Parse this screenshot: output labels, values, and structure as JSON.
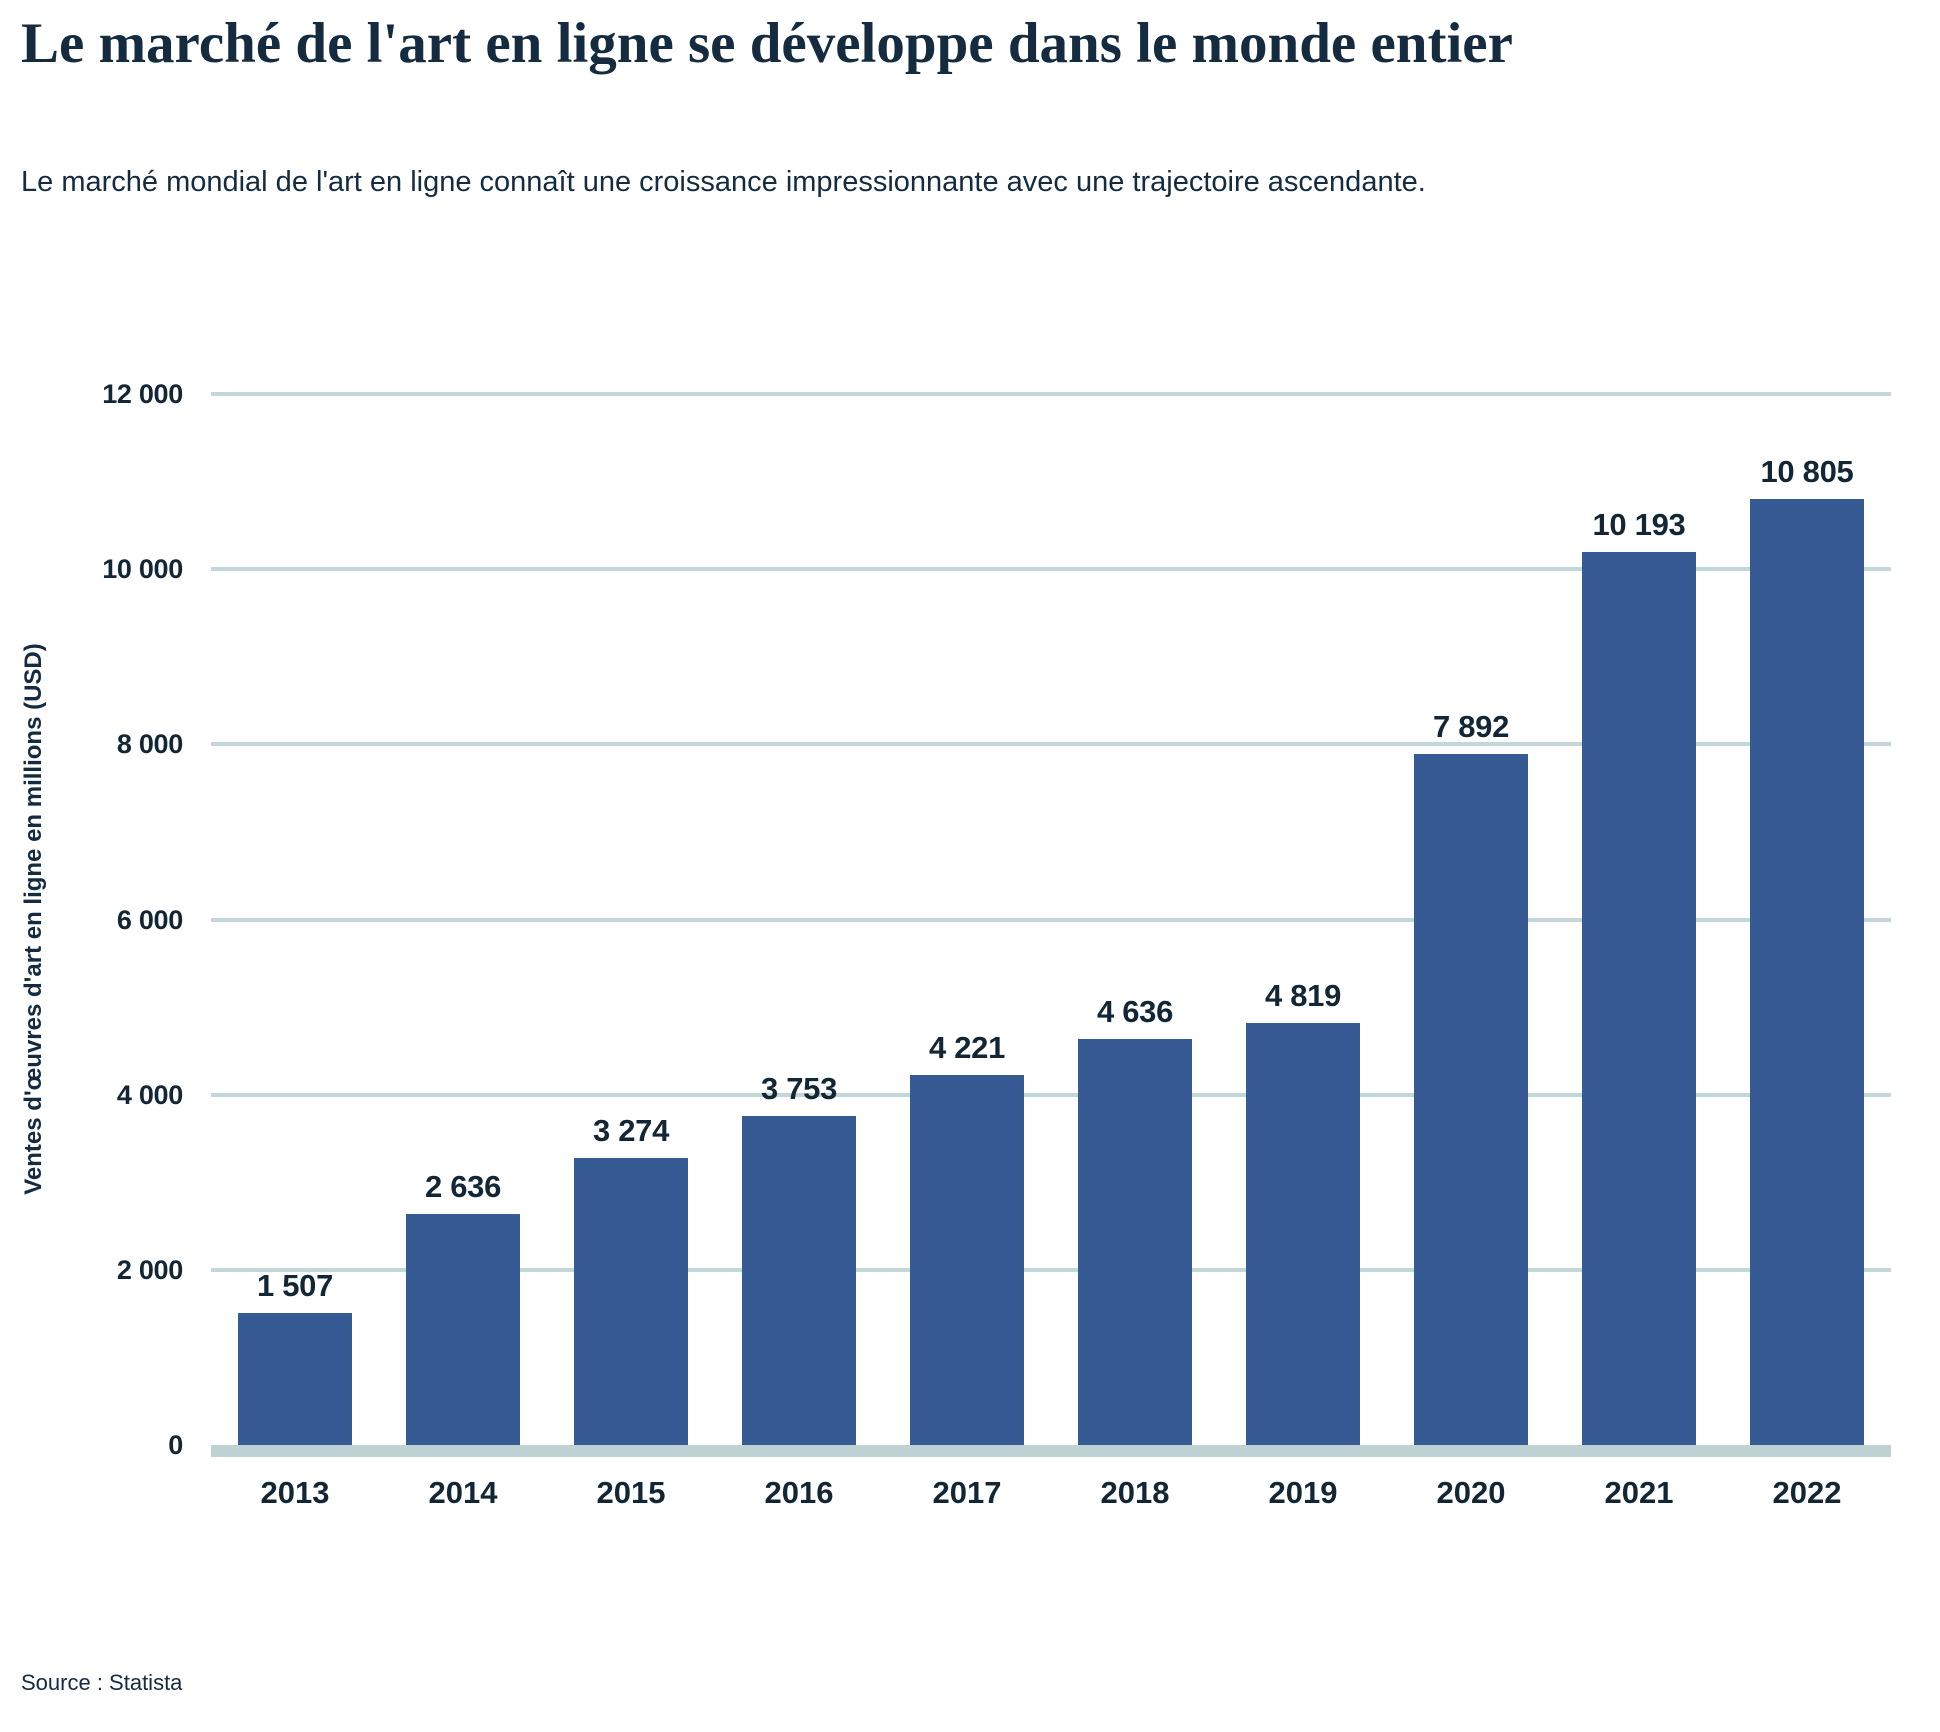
{
  "header": {
    "title": "Le marché de l'art en ligne se développe dans le monde entier",
    "subtitle": "Le marché mondial de l'art en ligne connaît une croissance impressionnante avec une trajectoire ascendante."
  },
  "source": {
    "label": "Source : Statista"
  },
  "chart_data": {
    "type": "bar",
    "title": "Le marché de l'art en ligne se développe dans le monde entier",
    "subtitle": "Le marché mondial de l'art en ligne connaît une croissance impressionnante avec une trajectoire ascendante.",
    "categories": [
      "2013",
      "2014",
      "2015",
      "2016",
      "2017",
      "2018",
      "2019",
      "2020",
      "2021",
      "2022"
    ],
    "values": [
      1507,
      2636,
      3274,
      3753,
      4221,
      4636,
      4819,
      7892,
      10193,
      10805
    ],
    "value_labels": [
      "1 507",
      "2 636",
      "3 274",
      "3 753",
      "4 221",
      "4 636",
      "4 819",
      "7 892",
      "10 193",
      "10 805"
    ],
    "xlabel": "",
    "ylabel": "Ventes d'œuvres d'art en ligne en millions (USD)",
    "ylim": [
      0,
      12000
    ],
    "yticks": [
      0,
      2000,
      4000,
      6000,
      8000,
      10000,
      12000
    ],
    "ytick_labels": [
      "0",
      "2 000",
      "4 000",
      "6 000",
      "8 000",
      "10 000",
      "12 000"
    ],
    "grid": "horizontal",
    "legend": "none",
    "source": "Source : Statista",
    "colors": {
      "bar": "#365a93",
      "grid": "#c3d6d8",
      "baseline": "#bed2d4",
      "text": "#142b40",
      "label_text": "#132636",
      "background": "#ffffff"
    }
  }
}
